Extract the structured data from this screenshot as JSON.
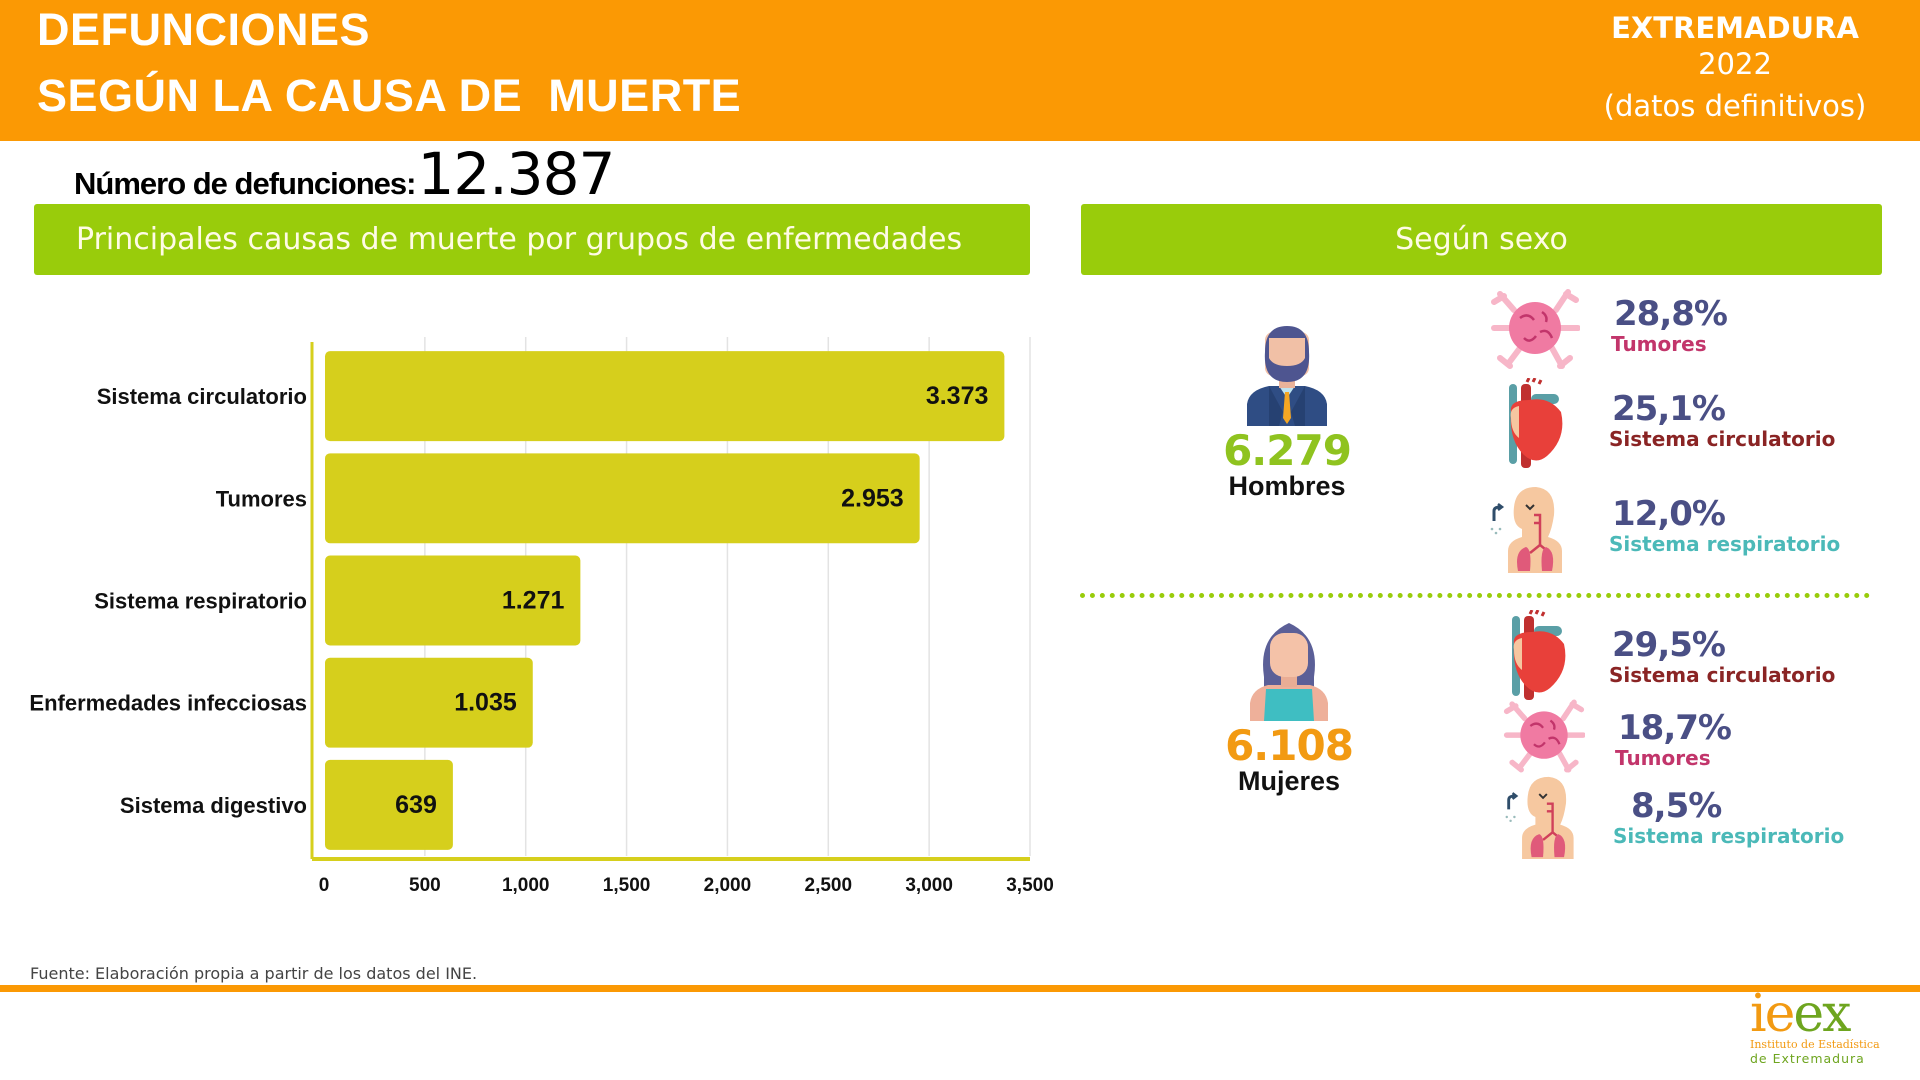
{
  "header": {
    "title_line1": "DEFUNCIONES",
    "title_line2": "SEGÚN LA CAUSA DE  MUERTE",
    "region": "EXTREMADURA",
    "year": "2022",
    "note": "(datos definitivos)"
  },
  "total": {
    "label": "Número de defunciones:",
    "value": "12.387"
  },
  "sections": {
    "causes_title": "Principales causas de muerte por grupos de enfermedades",
    "sex_title": "Según sexo"
  },
  "chart_data": {
    "type": "bar",
    "orientation": "horizontal",
    "title": "Principales causas de muerte por grupos de enfermedades",
    "categories": [
      "Sistema circulatorio",
      "Tumores",
      "Sistema respiratorio",
      "Enfermedades infecciosas",
      "Sistema digestivo"
    ],
    "values": [
      3373,
      2953,
      1271,
      1035,
      639
    ],
    "value_labels": [
      "3.373",
      "2.953",
      "1.271",
      "1.035",
      "639"
    ],
    "xlim": [
      0,
      3500
    ],
    "xticks": [
      0,
      500,
      1000,
      1500,
      2000,
      2500,
      3000,
      3500
    ],
    "xtick_labels": [
      "0",
      "500",
      "1,000",
      "1,500",
      "2,000",
      "2,500",
      "3,000",
      "3,500"
    ],
    "xlabel": "",
    "ylabel": "",
    "grid": true,
    "bar_color": "#d6cf1c",
    "axis_color": "#d6cf1c"
  },
  "sex": {
    "men": {
      "count": "6.279",
      "label": "Hombres",
      "stats": [
        {
          "pct": "28,8%",
          "cause": "Tumores",
          "icon": "tumor-icon",
          "type": "tum"
        },
        {
          "pct": "25,1%",
          "cause": "Sistema circulatorio",
          "icon": "heart-icon",
          "type": "circ"
        },
        {
          "pct": "12,0%",
          "cause": "Sistema respiratorio",
          "icon": "lungs-icon",
          "type": "resp"
        }
      ]
    },
    "women": {
      "count": "6.108",
      "label": "Mujeres",
      "stats": [
        {
          "pct": "29,5%",
          "cause": "Sistema circulatorio",
          "icon": "heart-icon",
          "type": "circ"
        },
        {
          "pct": "18,7%",
          "cause": "Tumores",
          "icon": "tumor-icon",
          "type": "tum"
        },
        {
          "pct": "8,5%",
          "cause": "Sistema respiratorio",
          "icon": "lungs-icon",
          "type": "resp"
        }
      ]
    }
  },
  "colors": {
    "orange": "#fb9904",
    "green": "#99cc0b",
    "men_number": "#8fc31f",
    "women_number": "#f29a12",
    "pct": "#4a4f85",
    "tumores": "#c2356b",
    "circulatorio": "#8a2424",
    "respiratorio": "#4bb9b8"
  },
  "footer": {
    "source": "Fuente: Elaboración propia a partir de los datos del INE."
  },
  "logo": {
    "mark": "ieex",
    "line1": "Instituto de Estadística",
    "line2": "de Extremadura"
  }
}
